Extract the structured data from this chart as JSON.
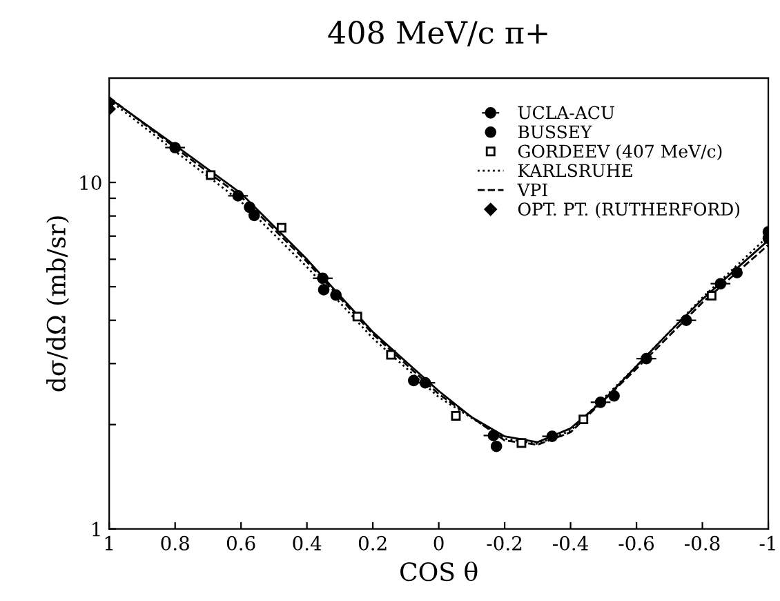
{
  "chart_data": {
    "type": "scatter",
    "title": "408 MeV/c π+",
    "xlabel": "COS θ",
    "ylabel": "dσ/dΩ (mb/sr)",
    "log": "y",
    "xlim": [
      1,
      -1
    ],
    "ylim": [
      1,
      20
    ],
    "xticks": [
      1,
      0.8,
      0.6,
      0.4,
      0.2,
      0,
      -0.2,
      -0.4,
      -0.6,
      -0.8,
      -1
    ],
    "yticks": [
      1,
      {
        "value": 2,
        "label": null
      },
      {
        "value": 3,
        "label": null
      },
      {
        "value": 4,
        "label": null
      },
      {
        "value": 5,
        "label": null
      },
      {
        "value": 6,
        "label": null
      },
      {
        "value": 7,
        "label": null
      },
      {
        "value": 8,
        "label": null
      },
      {
        "value": 9,
        "label": null
      },
      10
    ],
    "grid": false,
    "legend": "top right",
    "series": [
      {
        "name": "UCLA-ACU",
        "marker": "circle",
        "color": "#000000",
        "x": [
          0.8,
          0.609,
          0.352,
          0.041,
          -0.166,
          -0.344,
          -0.491,
          -0.63,
          -0.751,
          -0.855
        ],
        "values": [
          12.6,
          9.15,
          5.29,
          2.64,
          1.86,
          1.85,
          2.32,
          3.1,
          4.0,
          5.1
        ],
        "xerrors": [
          0.03,
          0.03,
          0.03,
          0.03,
          0.03,
          0.03,
          0.03,
          0.03,
          0.03,
          0.03
        ]
      },
      {
        "name": "BUSSEY",
        "marker": "circle",
        "color": "#000000",
        "x": [
          0.574,
          0.56,
          0.349,
          0.312,
          0.076,
          -0.175,
          -0.532,
          -0.905,
          -1,
          -1
        ],
        "values": [
          8.48,
          8.03,
          4.9,
          4.73,
          2.68,
          1.73,
          2.42,
          5.49,
          7.2,
          6.9
        ]
      },
      {
        "name": "GORDEEV (407 MeV/c)",
        "marker": "square",
        "color": "#000000",
        "x": [
          0.692,
          0.477,
          0.247,
          0.145,
          -0.052,
          -0.251,
          -0.439,
          -0.828
        ],
        "values": [
          10.5,
          7.4,
          4.1,
          3.18,
          2.12,
          1.77,
          2.07,
          4.71
        ]
      },
      {
        "name": "KARLSRUHE",
        "type": "line",
        "line_style": "dotted",
        "marker": "none",
        "color": "#000000",
        "x": [
          1,
          0.8,
          0.6,
          0.4,
          0.2,
          0,
          -0.2,
          -0.3,
          -0.4,
          -0.6,
          -0.8,
          -1
        ],
        "values": [
          17.3,
          12.3,
          8.8,
          5.7,
          3.55,
          2.4,
          1.82,
          1.76,
          1.92,
          2.95,
          4.65,
          7.0
        ]
      },
      {
        "name": "VPI",
        "type": "line",
        "line_style": "dashed",
        "marker": "none",
        "color": "#000000",
        "x": [
          1,
          0.8,
          0.6,
          0.4,
          0.2,
          0,
          -0.2,
          -0.3,
          -0.4,
          -0.6,
          -0.8,
          -1
        ],
        "values": [
          17.6,
          12.6,
          9.1,
          5.9,
          3.65,
          2.45,
          1.8,
          1.75,
          1.9,
          2.9,
          4.5,
          6.6
        ]
      },
      {
        "name": "OPT. PT. (RUTHERFORD)",
        "marker": "diamond",
        "color": "#000000",
        "x": [
          1,
          1
        ],
        "values": [
          17.0,
          16.3
        ]
      },
      {
        "type": "line",
        "line_style": "solid",
        "marker": "none",
        "color": "#000000",
        "x": [
          1,
          0.8,
          0.6,
          0.4,
          0.2,
          0,
          -0.1,
          -0.2,
          -0.3,
          -0.4,
          -0.5,
          -0.6,
          -0.7,
          -0.8,
          -0.9,
          -1
        ],
        "values": [
          17.5,
          12.8,
          9.3,
          6.0,
          3.7,
          2.5,
          2.1,
          1.85,
          1.78,
          1.95,
          2.35,
          2.95,
          3.7,
          4.6,
          5.6,
          6.8
        ]
      }
    ]
  }
}
